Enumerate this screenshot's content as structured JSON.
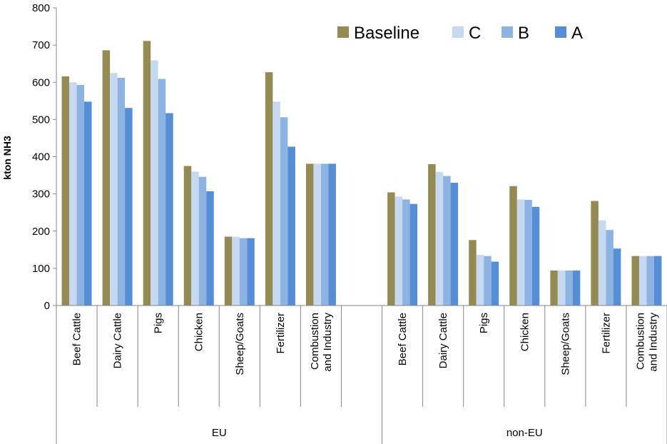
{
  "chart_data": {
    "type": "bar",
    "title": "",
    "ylabel": "kton NH3",
    "xlabel": "",
    "ylim": [
      0,
      800
    ],
    "yticks": [
      0,
      100,
      200,
      300,
      400,
      500,
      600,
      700,
      800
    ],
    "grid": false,
    "legend_position": "top-right",
    "groups": [
      {
        "name": "EU",
        "categories": [
          "Beef Cattle",
          "Dairy Cattle",
          "Pigs",
          "Chicken",
          "Sheep/Goats",
          "Fertilizer",
          "Combustion and Industry",
          ""
        ]
      },
      {
        "name": "non-EU",
        "categories": [
          "Beef Cattle",
          "Dairy Cattle",
          "Pigs",
          "Chicken",
          "Sheep/Goats",
          "Fertilizer",
          "Combustion and Industry"
        ]
      }
    ],
    "series": [
      {
        "name": "Baseline",
        "color": "#948a54",
        "values": [
          616,
          686,
          711,
          375,
          185,
          627,
          381,
          null,
          304,
          380,
          176,
          321,
          94,
          281,
          133
        ]
      },
      {
        "name": "C",
        "color": "#c6d9f1",
        "values": [
          600,
          625,
          659,
          360,
          185,
          548,
          381,
          null,
          293,
          359,
          136,
          285,
          94,
          229,
          133
        ]
      },
      {
        "name": "B",
        "color": "#8db3e2",
        "values": [
          593,
          612,
          609,
          346,
          181,
          506,
          381,
          null,
          285,
          348,
          133,
          284,
          94,
          203,
          133
        ]
      },
      {
        "name": "A",
        "color": "#558ed5",
        "values": [
          548,
          531,
          517,
          307,
          181,
          427,
          381,
          null,
          273,
          330,
          118,
          265,
          94,
          153,
          133
        ]
      }
    ]
  }
}
